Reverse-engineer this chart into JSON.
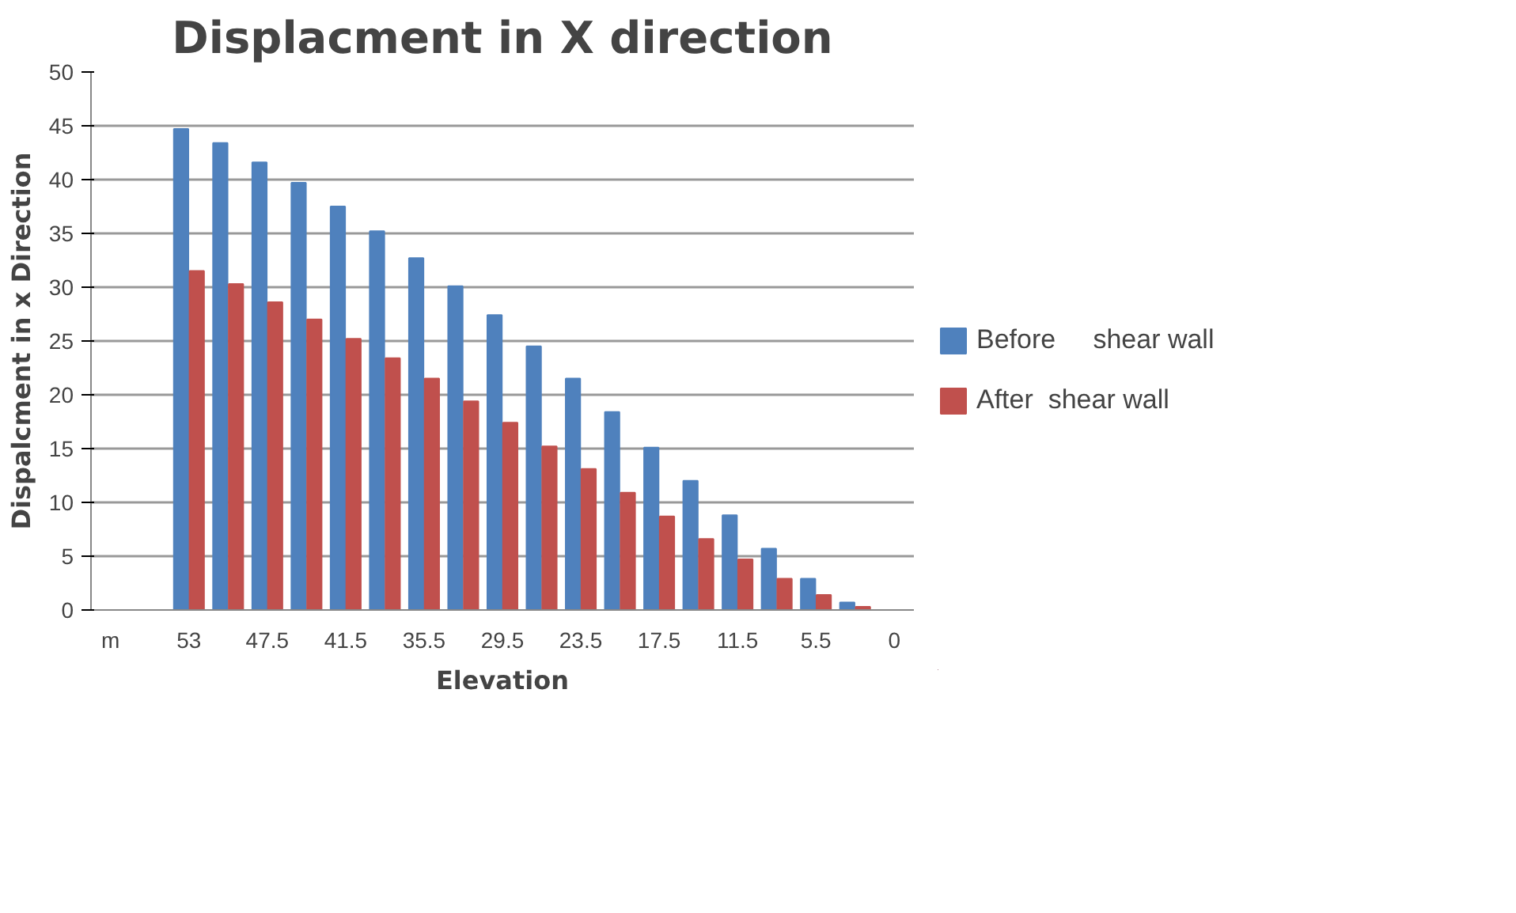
{
  "chart_data": {
    "type": "bar",
    "title": "Displacment in X direction",
    "xlabel": "Elevation",
    "ylabel": "Dispalcment in x Direction",
    "categories": [
      "m",
      null,
      "53",
      null,
      "47.5",
      null,
      "41.5",
      null,
      "35.5",
      null,
      "29.5",
      null,
      "23.5",
      null,
      "17.5",
      null,
      "11.5",
      null,
      "5.5",
      null,
      "0"
    ],
    "series": [
      {
        "name": "Before     shear wall",
        "color": "#4f81bd",
        "values": [
          null,
          null,
          44.7,
          43.4,
          41.6,
          39.7,
          37.5,
          35.2,
          32.7,
          30.1,
          27.4,
          24.5,
          21.5,
          18.4,
          15.1,
          12.0,
          8.8,
          5.7,
          2.9,
          0.7,
          null
        ]
      },
      {
        "name": "After  shear wall",
        "color": "#c0504d",
        "values": [
          null,
          null,
          31.5,
          30.3,
          28.6,
          27.0,
          25.2,
          23.4,
          21.5,
          19.4,
          17.4,
          15.2,
          13.1,
          10.9,
          8.7,
          6.6,
          4.7,
          2.9,
          1.4,
          0.3,
          null
        ]
      }
    ],
    "ylim": [
      0,
      50
    ],
    "yticks": [
      0,
      5,
      10,
      15,
      20,
      25,
      30,
      35,
      40,
      45,
      50
    ],
    "grid": "y",
    "legend": "right"
  }
}
